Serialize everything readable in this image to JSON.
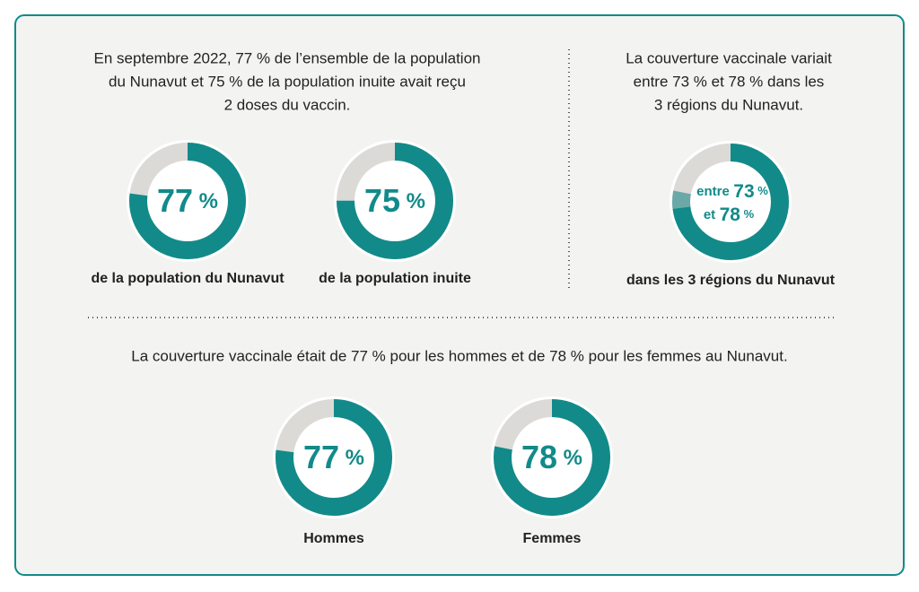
{
  "texts": {
    "left_heading": [
      "En septembre 2022, 77 % de l’ensemble de la population",
      "du Nunavut et 75 % de la population inuite avait reçu",
      "2 doses du vaccin."
    ],
    "right_heading": [
      "La couverture vaccinale variait",
      "entre 73 % et 78 % dans les",
      "3 régions du Nunavut."
    ],
    "bottom_heading": [
      "La couverture vaccinale était de 77 % pour les hommes et de 78 % pour les femmes au Nunavut."
    ]
  },
  "chart_data": [
    {
      "type": "donut",
      "values": [
        77
      ],
      "value_labels": [
        "77 %"
      ],
      "caption": "de la population du Nunavut",
      "color": "#128a8a",
      "track_color": "#dcdad6"
    },
    {
      "type": "donut",
      "values": [
        75
      ],
      "value_labels": [
        "75 %"
      ],
      "caption": "de la population inuite",
      "color": "#128a8a",
      "track_color": "#dcdad6"
    },
    {
      "type": "range-donut",
      "values": [
        73,
        78
      ],
      "prefixes": [
        "entre",
        "et"
      ],
      "value_labels": [
        "73 %",
        "78 %"
      ],
      "caption": "dans les 3 régions du Nunavut",
      "color": "#128a8a",
      "range_color": "#6aa9a8",
      "track_color": "#dcdad6"
    },
    {
      "type": "donut",
      "values": [
        77
      ],
      "value_labels": [
        "77 %"
      ],
      "caption": "Hommes",
      "color": "#128a8a",
      "track_color": "#dcdad6"
    },
    {
      "type": "donut",
      "values": [
        78
      ],
      "value_labels": [
        "78 %"
      ],
      "caption": "Femmes",
      "color": "#128a8a",
      "track_color": "#dcdad6"
    }
  ]
}
